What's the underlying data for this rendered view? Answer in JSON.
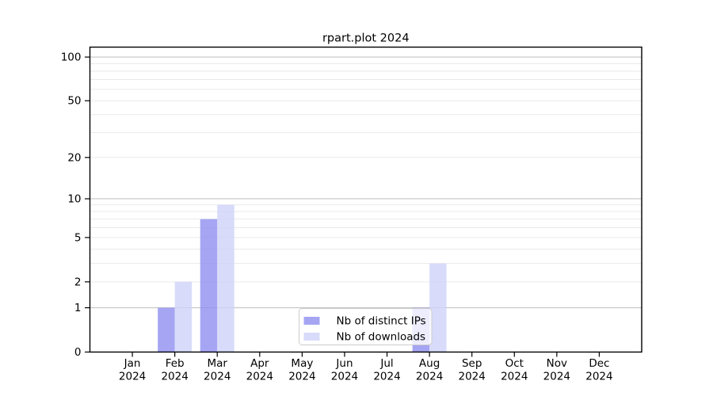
{
  "chart_data": {
    "type": "bar",
    "title": "rpart.plot 2024",
    "categories": [
      "Jan 2024",
      "Feb 2024",
      "Mar 2024",
      "Apr 2024",
      "May 2024",
      "Jun 2024",
      "Jul 2024",
      "Aug 2024",
      "Sep 2024",
      "Oct 2024",
      "Nov 2024",
      "Dec 2024"
    ],
    "x_tick_line1": [
      "Jan",
      "Feb",
      "Mar",
      "Apr",
      "May",
      "Jun",
      "Jul",
      "Aug",
      "Sep",
      "Oct",
      "Nov",
      "Dec"
    ],
    "x_tick_line2": "2024",
    "series": [
      {
        "name": "Nb of distinct IPs",
        "color": "#8e8ef0",
        "opacity": 0.8,
        "values": [
          0,
          1,
          7,
          0,
          0,
          0,
          0,
          1,
          0,
          0,
          0,
          0
        ]
      },
      {
        "name": "Nb of downloads",
        "color": "#cfd2f9",
        "opacity": 0.8,
        "values": [
          0,
          2,
          9,
          0,
          0,
          0,
          0,
          3,
          0,
          0,
          0,
          0
        ]
      }
    ],
    "xlabel": "",
    "ylabel": "",
    "y_axis": {
      "scale": "log1p",
      "lim": [
        0,
        117
      ],
      "ticks": [
        0,
        1,
        2,
        5,
        10,
        20,
        50,
        100
      ],
      "major_gridlines": [
        1,
        10,
        100
      ],
      "minor_gridlines": [
        2,
        3,
        4,
        5,
        6,
        7,
        8,
        9,
        20,
        30,
        40,
        50,
        60,
        70,
        80,
        90
      ]
    },
    "grid": {
      "major_color": "#c4c4c4",
      "minor_color": "#e9e9e9"
    },
    "axis_color": "#000000",
    "background_color": "#ffffff",
    "legend": {
      "position": "lower-right-inside",
      "entries": [
        "Nb of distinct IPs",
        "Nb of downloads"
      ],
      "background": "#ffffff",
      "border_color": "#cccccc"
    }
  }
}
